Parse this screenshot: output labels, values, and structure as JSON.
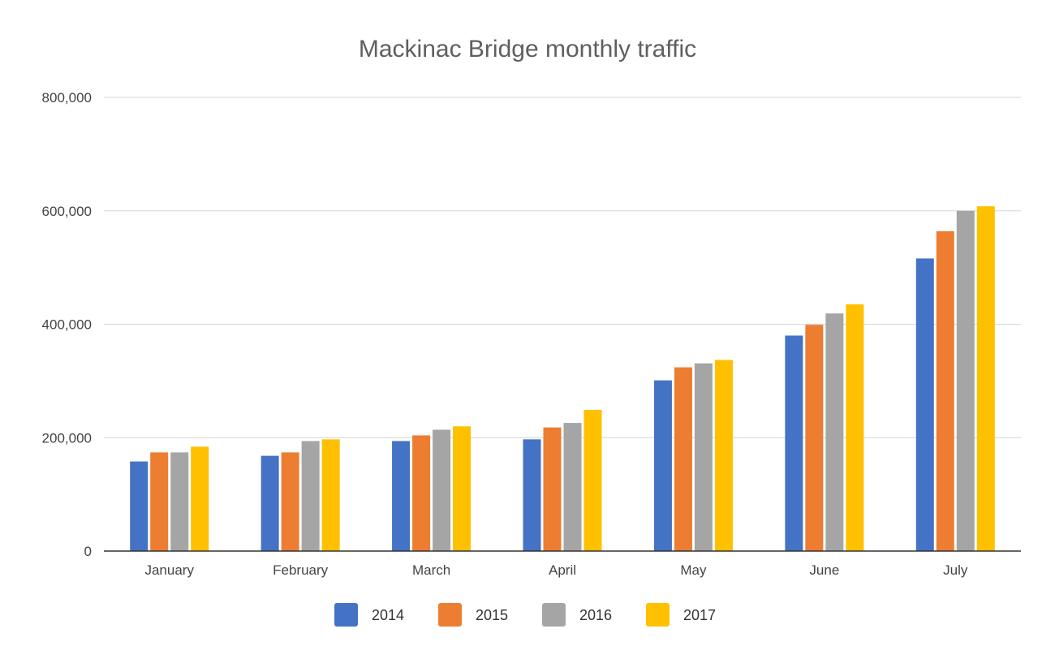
{
  "chart_data": {
    "type": "bar",
    "title": "Mackinac Bridge monthly traffic",
    "xlabel": "",
    "ylabel": "",
    "categories": [
      "January",
      "February",
      "March",
      "April",
      "May",
      "June",
      "July"
    ],
    "series": [
      {
        "name": "2014",
        "color": "#4472c4",
        "values": [
          158000,
          168000,
          194000,
          197000,
          301000,
          380000,
          516000
        ]
      },
      {
        "name": "2015",
        "color": "#ed7d31",
        "values": [
          174000,
          174000,
          204000,
          218000,
          324000,
          399000,
          564000
        ]
      },
      {
        "name": "2016",
        "color": "#a5a5a5",
        "values": [
          174000,
          194000,
          214000,
          226000,
          331000,
          419000,
          600000
        ]
      },
      {
        "name": "2017",
        "color": "#ffc000",
        "values": [
          184000,
          197000,
          220000,
          249000,
          337000,
          435000,
          608000
        ]
      }
    ],
    "ylim": [
      0,
      800000
    ],
    "yticks": [
      0,
      200000,
      400000,
      600000,
      800000
    ],
    "ytick_labels": [
      "0",
      "200,000",
      "400,000",
      "600,000",
      "800,000"
    ],
    "grid": true,
    "legend_position": "bottom"
  }
}
